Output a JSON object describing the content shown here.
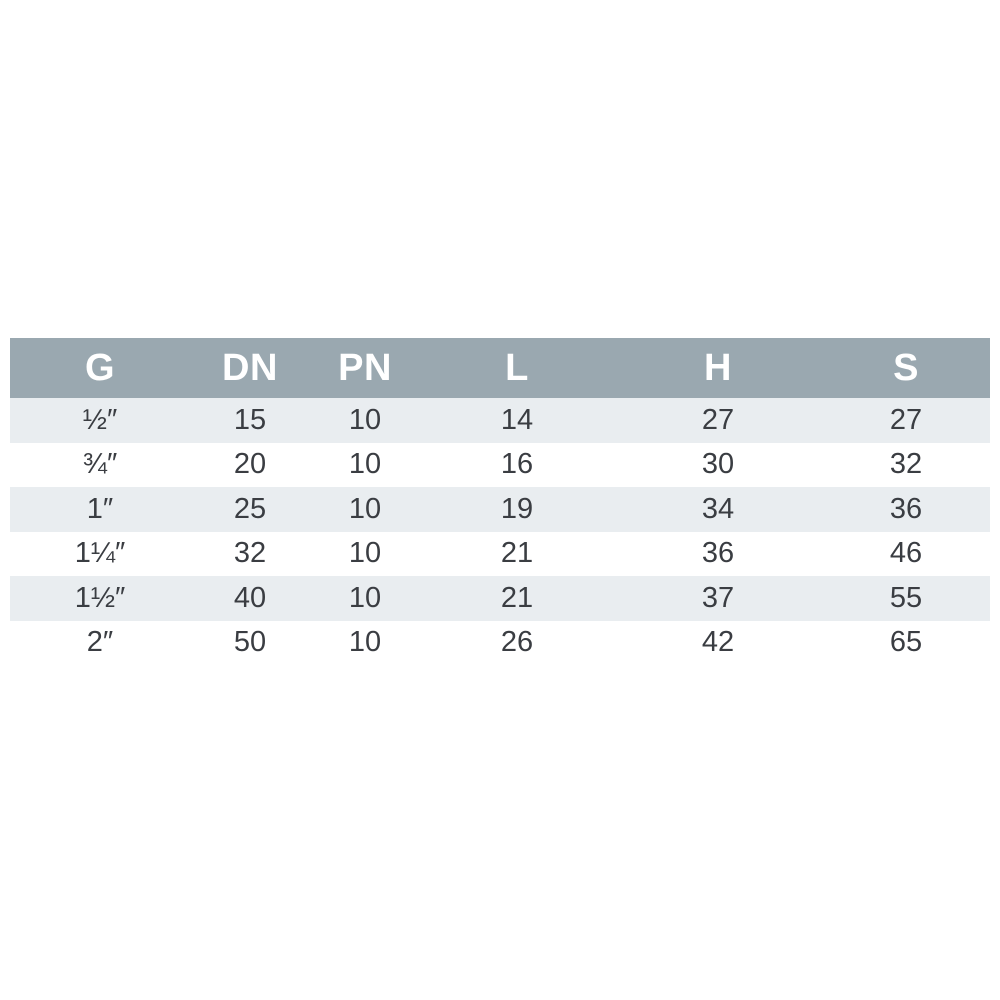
{
  "chart_data": {
    "type": "table",
    "columns": [
      "G",
      "DN",
      "PN",
      "L",
      "H",
      "S"
    ],
    "rows": [
      [
        "½″",
        15,
        10,
        14,
        27,
        27
      ],
      [
        "¾″",
        20,
        10,
        16,
        30,
        32
      ],
      [
        "1″",
        25,
        10,
        19,
        34,
        36
      ],
      [
        "1¼″",
        32,
        10,
        21,
        36,
        46
      ],
      [
        "1½″",
        40,
        10,
        21,
        37,
        55
      ],
      [
        "2″",
        50,
        10,
        26,
        42,
        65
      ]
    ],
    "legend": "none",
    "grid": "off"
  },
  "colors": {
    "header_bg": "#9aa8b0",
    "header_text": "#ffffff",
    "row_alt_bg": "#e9edf0",
    "row_bg": "#ffffff",
    "body_text": "#3a3d42",
    "page_bg": "#ffffff"
  }
}
